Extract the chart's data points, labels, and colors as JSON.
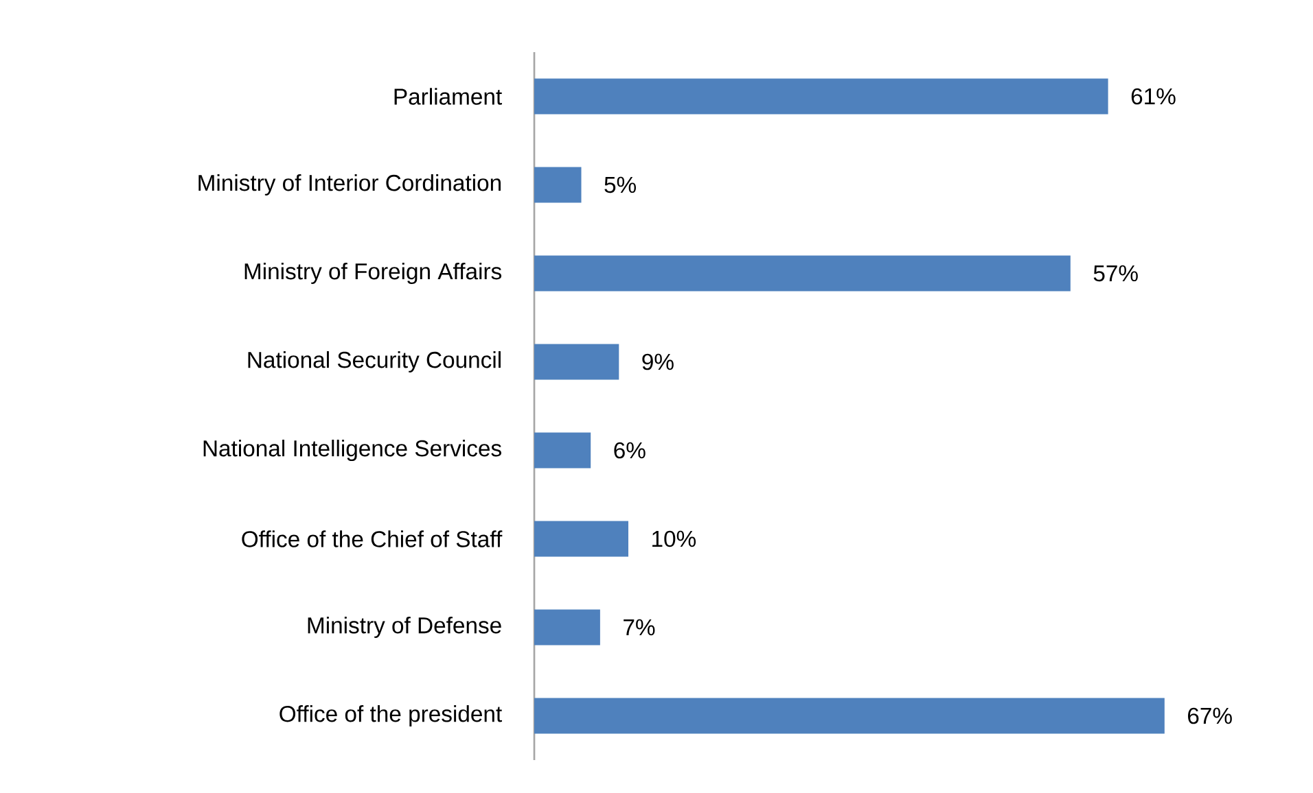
{
  "chart_data": {
    "type": "bar",
    "orientation": "horizontal",
    "categories": [
      "Parliament",
      "Ministry of Interior Cordination",
      "Ministry of Foreign Affairs",
      "National Security Council",
      "National Intelligence Services",
      "Office of the Chief of Staff",
      "Ministry of Defense",
      "Office of the president"
    ],
    "values": [
      61,
      5,
      57,
      9,
      6,
      10,
      7,
      67
    ],
    "value_labels": [
      "61%",
      "5%",
      "57%",
      "9%",
      "6%",
      "10%",
      "7%",
      "67%"
    ],
    "color": "#4f81bd"
  }
}
